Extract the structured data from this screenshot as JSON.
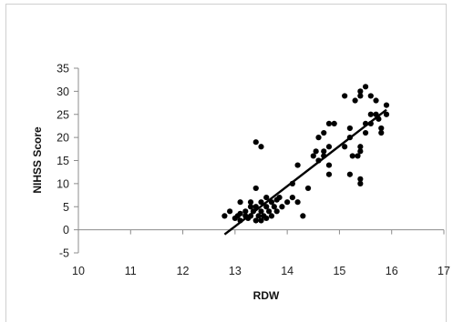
{
  "chart_data": {
    "type": "scatter",
    "title": "",
    "xlabel": "RDW",
    "ylabel": "NIHSS Score",
    "xlim": [
      10,
      17
    ],
    "ylim": [
      -5,
      35
    ],
    "x_ticks": [
      10,
      11,
      12,
      13,
      14,
      15,
      16,
      17
    ],
    "y_ticks": [
      -5,
      0,
      5,
      10,
      15,
      20,
      25,
      30,
      35
    ],
    "grid": false,
    "legend": "none",
    "colors": {
      "points": "#000000",
      "line": "#000000",
      "axis": "#8c8c8c",
      "frame": "#cfcfcf"
    },
    "series": [
      {
        "points": [
          [
            12.8,
            3
          ],
          [
            12.9,
            4
          ],
          [
            13.0,
            2.5
          ],
          [
            13.05,
            3
          ],
          [
            13.1,
            2
          ],
          [
            13.1,
            3.5
          ],
          [
            13.1,
            6
          ],
          [
            13.2,
            3
          ],
          [
            13.2,
            4
          ],
          [
            13.25,
            2.5
          ],
          [
            13.3,
            3
          ],
          [
            13.3,
            5
          ],
          [
            13.3,
            6
          ],
          [
            13.35,
            4
          ],
          [
            13.4,
            2
          ],
          [
            13.4,
            5
          ],
          [
            13.4,
            9
          ],
          [
            13.4,
            19
          ],
          [
            13.45,
            3
          ],
          [
            13.5,
            2
          ],
          [
            13.5,
            4
          ],
          [
            13.5,
            6
          ],
          [
            13.5,
            18
          ],
          [
            13.55,
            3
          ],
          [
            13.6,
            2.5
          ],
          [
            13.6,
            5
          ],
          [
            13.6,
            7
          ],
          [
            13.65,
            4
          ],
          [
            13.7,
            3
          ],
          [
            13.7,
            6
          ],
          [
            13.75,
            5
          ],
          [
            13.8,
            4
          ],
          [
            13.8,
            6.5
          ],
          [
            13.85,
            7
          ],
          [
            13.9,
            5
          ],
          [
            14.0,
            6
          ],
          [
            14.1,
            10
          ],
          [
            14.1,
            7
          ],
          [
            14.2,
            6
          ],
          [
            14.2,
            14
          ],
          [
            14.3,
            3
          ],
          [
            14.4,
            9
          ],
          [
            14.5,
            16
          ],
          [
            14.55,
            17
          ],
          [
            14.6,
            15
          ],
          [
            14.6,
            20
          ],
          [
            14.7,
            16
          ],
          [
            14.7,
            17
          ],
          [
            14.7,
            21
          ],
          [
            14.8,
            12
          ],
          [
            14.8,
            14
          ],
          [
            14.8,
            18
          ],
          [
            14.8,
            23
          ],
          [
            14.9,
            23
          ],
          [
            15.1,
            18
          ],
          [
            15.1,
            29
          ],
          [
            15.2,
            20
          ],
          [
            15.2,
            22
          ],
          [
            15.2,
            12
          ],
          [
            15.25,
            16
          ],
          [
            15.3,
            28
          ],
          [
            15.35,
            16
          ],
          [
            15.4,
            11
          ],
          [
            15.4,
            10
          ],
          [
            15.4,
            17
          ],
          [
            15.4,
            18
          ],
          [
            15.4,
            29
          ],
          [
            15.4,
            30
          ],
          [
            15.5,
            31
          ],
          [
            15.5,
            23
          ],
          [
            15.5,
            21
          ],
          [
            15.6,
            25
          ],
          [
            15.6,
            23
          ],
          [
            15.6,
            29
          ],
          [
            15.7,
            25
          ],
          [
            15.7,
            28
          ],
          [
            15.75,
            24
          ],
          [
            15.8,
            22
          ],
          [
            15.8,
            21
          ],
          [
            15.9,
            27
          ],
          [
            15.9,
            25
          ]
        ]
      }
    ],
    "trendline": {
      "x": [
        12.8,
        15.9
      ],
      "y": [
        -1,
        26
      ]
    }
  }
}
